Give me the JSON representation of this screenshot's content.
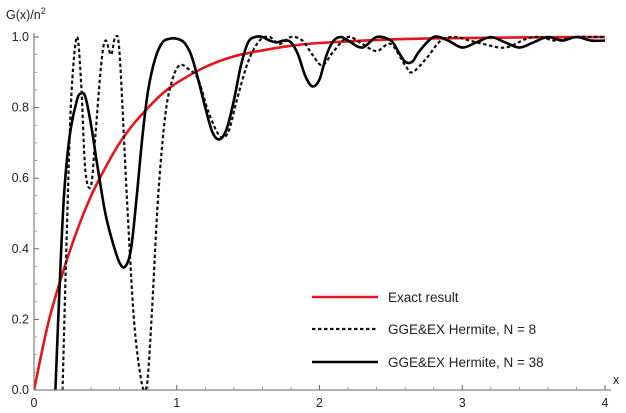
{
  "chart_data": {
    "type": "line",
    "ylabel": "G(x)/n",
    "ylabel_superscript": "2",
    "xlabel": "x",
    "xlim": [
      0,
      4
    ],
    "ylim": [
      0,
      1.0
    ],
    "xticks": [
      "0",
      "1",
      "2",
      "3",
      "4"
    ],
    "yticks": [
      "0.0",
      "0.2",
      "0.4",
      "0.6",
      "0.8",
      "1.0"
    ],
    "xtick_values": [
      0,
      1,
      2,
      3,
      4
    ],
    "ytick_values": [
      0,
      0.2,
      0.4,
      0.6,
      0.8,
      1.0
    ],
    "grid": false,
    "legend_position": "bottom-right",
    "series": [
      {
        "name": "Exact result",
        "color": "#e8141b",
        "style": "solid",
        "x": [
          0,
          0.1,
          0.2,
          0.3,
          0.4,
          0.5,
          0.6,
          0.7,
          0.8,
          0.9,
          1.0,
          1.2,
          1.4,
          1.6,
          1.8,
          2.0,
          2.5,
          3.0,
          3.5,
          4.0
        ],
        "values": [
          0.0,
          0.19,
          0.33,
          0.45,
          0.55,
          0.63,
          0.7,
          0.755,
          0.8,
          0.84,
          0.87,
          0.915,
          0.945,
          0.962,
          0.975,
          0.983,
          0.993,
          0.997,
          0.999,
          1.0
        ]
      },
      {
        "name": "GGE&EX Hermite, N = 8",
        "color": "#111111",
        "style": "dashed",
        "x": [
          0.2,
          0.23,
          0.26,
          0.3,
          0.33,
          0.36,
          0.4,
          0.43,
          0.47,
          0.5,
          0.54,
          0.57,
          0.6,
          0.65,
          0.7,
          0.75,
          0.78,
          0.8,
          0.83,
          0.87,
          0.92,
          0.97,
          1.02,
          1.08,
          1.15,
          1.22,
          1.3,
          1.36,
          1.42,
          1.5,
          1.58,
          1.65,
          1.72,
          1.8,
          1.88,
          1.95,
          2.02,
          2.1,
          2.2,
          2.3,
          2.4,
          2.5,
          2.6,
          2.65,
          2.75,
          2.85,
          2.95,
          3.05,
          3.15,
          3.3,
          3.45,
          3.55,
          3.65,
          3.8,
          3.9,
          4.0
        ],
        "values": [
          0.0,
          0.45,
          0.82,
          1.0,
          0.87,
          0.62,
          0.58,
          0.72,
          0.92,
          0.99,
          0.95,
          1.0,
          0.95,
          0.55,
          0.2,
          0.03,
          0.0,
          0.05,
          0.25,
          0.55,
          0.78,
          0.88,
          0.92,
          0.91,
          0.88,
          0.79,
          0.72,
          0.73,
          0.82,
          0.93,
          0.99,
          1.0,
          0.98,
          1.0,
          0.99,
          0.95,
          0.92,
          0.96,
          1.0,
          0.98,
          0.96,
          0.98,
          0.92,
          0.9,
          0.94,
          0.99,
          1.0,
          0.99,
          0.98,
          0.97,
          0.995,
          1.0,
          0.99,
          1.0,
          1.0,
          1.0
        ]
      },
      {
        "name": "GGE&EX Hermite, N = 38",
        "color": "#000000",
        "style": "solid",
        "x": [
          0.15,
          0.18,
          0.21,
          0.25,
          0.3,
          0.33,
          0.36,
          0.4,
          0.45,
          0.5,
          0.55,
          0.6,
          0.64,
          0.68,
          0.72,
          0.76,
          0.8,
          0.85,
          0.9,
          0.95,
          1.0,
          1.05,
          1.1,
          1.15,
          1.2,
          1.25,
          1.3,
          1.35,
          1.4,
          1.45,
          1.5,
          1.55,
          1.6,
          1.65,
          1.7,
          1.75,
          1.8,
          1.85,
          1.9,
          1.95,
          2.0,
          2.05,
          2.1,
          2.15,
          2.2,
          2.3,
          2.4,
          2.5,
          2.55,
          2.6,
          2.65,
          2.7,
          2.8,
          2.9,
          3.0,
          3.1,
          3.2,
          3.3,
          3.4,
          3.5,
          3.6,
          3.7,
          3.8,
          3.9,
          4.0
        ],
        "values": [
          0.0,
          0.3,
          0.55,
          0.72,
          0.82,
          0.84,
          0.83,
          0.75,
          0.62,
          0.5,
          0.42,
          0.36,
          0.35,
          0.4,
          0.55,
          0.72,
          0.85,
          0.94,
          0.985,
          0.995,
          0.995,
          0.985,
          0.95,
          0.88,
          0.8,
          0.73,
          0.71,
          0.74,
          0.82,
          0.92,
          0.985,
          1.0,
          1.0,
          0.99,
          0.985,
          0.99,
          0.985,
          0.95,
          0.89,
          0.86,
          0.88,
          0.95,
          0.99,
          1.0,
          0.99,
          0.97,
          1.0,
          0.99,
          0.96,
          0.93,
          0.93,
          0.96,
          1.0,
          0.99,
          0.97,
          0.985,
          1.0,
          0.985,
          0.97,
          0.985,
          1.0,
          0.99,
          1.0,
          0.99,
          0.99
        ]
      }
    ]
  }
}
